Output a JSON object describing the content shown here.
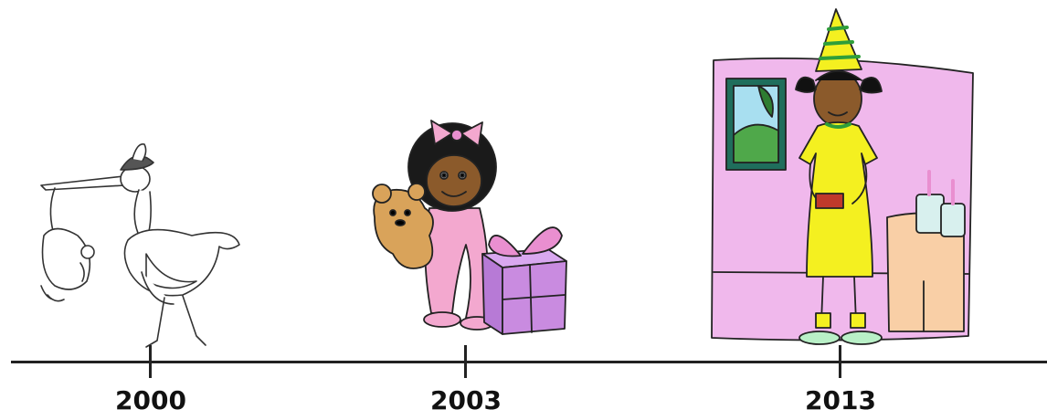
{
  "timeline": {
    "axis_color": "#222222",
    "events": [
      {
        "year": "2000",
        "icon": "stork-carrying-baby-icon"
      },
      {
        "year": "2003",
        "icon": "toddler-with-teddy-and-gift-icon"
      },
      {
        "year": "2013",
        "icon": "girl-birthday-party-icon"
      }
    ]
  },
  "colors": {
    "gift_purple": "#c98be0",
    "ribbon_pink": "#e98fd0",
    "pajama_pink": "#f3a8cf",
    "room_pink": "#f0b8ec",
    "dress_yellow": "#f4f020",
    "skin_brown": "#8b5a2b",
    "bear_tan": "#d9a35a",
    "table_peach": "#f9cfa6"
  }
}
